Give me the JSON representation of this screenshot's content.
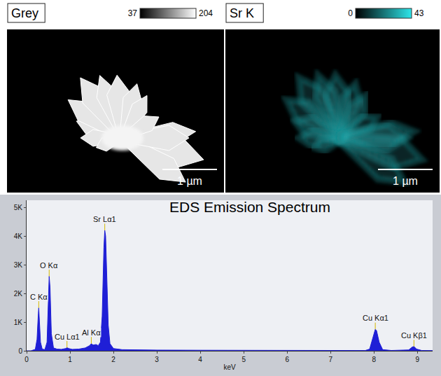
{
  "images": [
    {
      "title": "Grey",
      "colorbar": {
        "range": [
          37,
          204
        ],
        "colors": [
          "#000000",
          "#ffffff"
        ]
      },
      "scale_bar": "1 µm"
    },
    {
      "title": "Sr K",
      "colorbar": {
        "range": [
          0,
          43
        ],
        "colors": [
          "#000000",
          "#2ee6ea"
        ]
      },
      "scale_bar": "1 µm"
    }
  ],
  "chart_data": {
    "type": "area",
    "title": "EDS Emission Spectrum",
    "x_label": "keV",
    "color": "#1f1fd6",
    "grid": false,
    "x": [
      0,
      0.1,
      0.2,
      0.24,
      0.27,
      0.28,
      0.29,
      0.32,
      0.36,
      0.42,
      0.47,
      0.5,
      0.52,
      0.54,
      0.57,
      0.62,
      0.7,
      0.8,
      0.9,
      0.93,
      0.97,
      1.05,
      1.2,
      1.35,
      1.45,
      1.49,
      1.53,
      1.6,
      1.65,
      1.7,
      1.74,
      1.78,
      1.8,
      1.82,
      1.85,
      1.88,
      1.92,
      2.0,
      2.2,
      2.5,
      3,
      4,
      5,
      6,
      7,
      7.8,
      7.9,
      7.98,
      8.03,
      8.06,
      8.12,
      8.2,
      8.4,
      8.8,
      8.88,
      8.92,
      8.98,
      9.1,
      9.35
    ],
    "values": [
      0,
      0,
      50,
      400,
      1300,
      1500,
      1200,
      300,
      60,
      40,
      300,
      1800,
      2600,
      2200,
      600,
      100,
      60,
      50,
      80,
      110,
      80,
      50,
      60,
      100,
      180,
      250,
      200,
      220,
      180,
      300,
      1200,
      3600,
      4200,
      4000,
      2500,
      900,
      250,
      80,
      40,
      30,
      25,
      20,
      15,
      12,
      10,
      10,
      60,
      450,
      750,
      700,
      300,
      40,
      12,
      30,
      130,
      150,
      60,
      10,
      8
    ],
    "xlim": [
      0,
      9.35
    ],
    "xticks": [
      0,
      1,
      2,
      3,
      4,
      5,
      6,
      7,
      8,
      9
    ],
    "ylim": [
      0,
      5250
    ],
    "yticks": [
      0,
      {
        "value": 1000,
        "label": "1K"
      },
      {
        "value": 2000,
        "label": "2K"
      },
      {
        "value": 3000,
        "label": "3K"
      },
      {
        "value": 4000,
        "label": "4K"
      },
      {
        "value": 5000,
        "label": "5K"
      }
    ],
    "annotations": [
      {
        "text": "C Kα",
        "x": 0.28,
        "y": 1500
      },
      {
        "text": "O Kα",
        "x": 0.52,
        "y": 2600
      },
      {
        "text": "Cu Lα1",
        "x": 0.93,
        "y": 110
      },
      {
        "text": "Al Kα",
        "x": 1.49,
        "y": 250
      },
      {
        "text": "Sr Lα1",
        "x": 1.8,
        "y": 4200
      },
      {
        "text": "Cu Kα1",
        "x": 8.03,
        "y": 750
      },
      {
        "text": "Cu Kβ1",
        "x": 8.92,
        "y": 150
      }
    ]
  }
}
